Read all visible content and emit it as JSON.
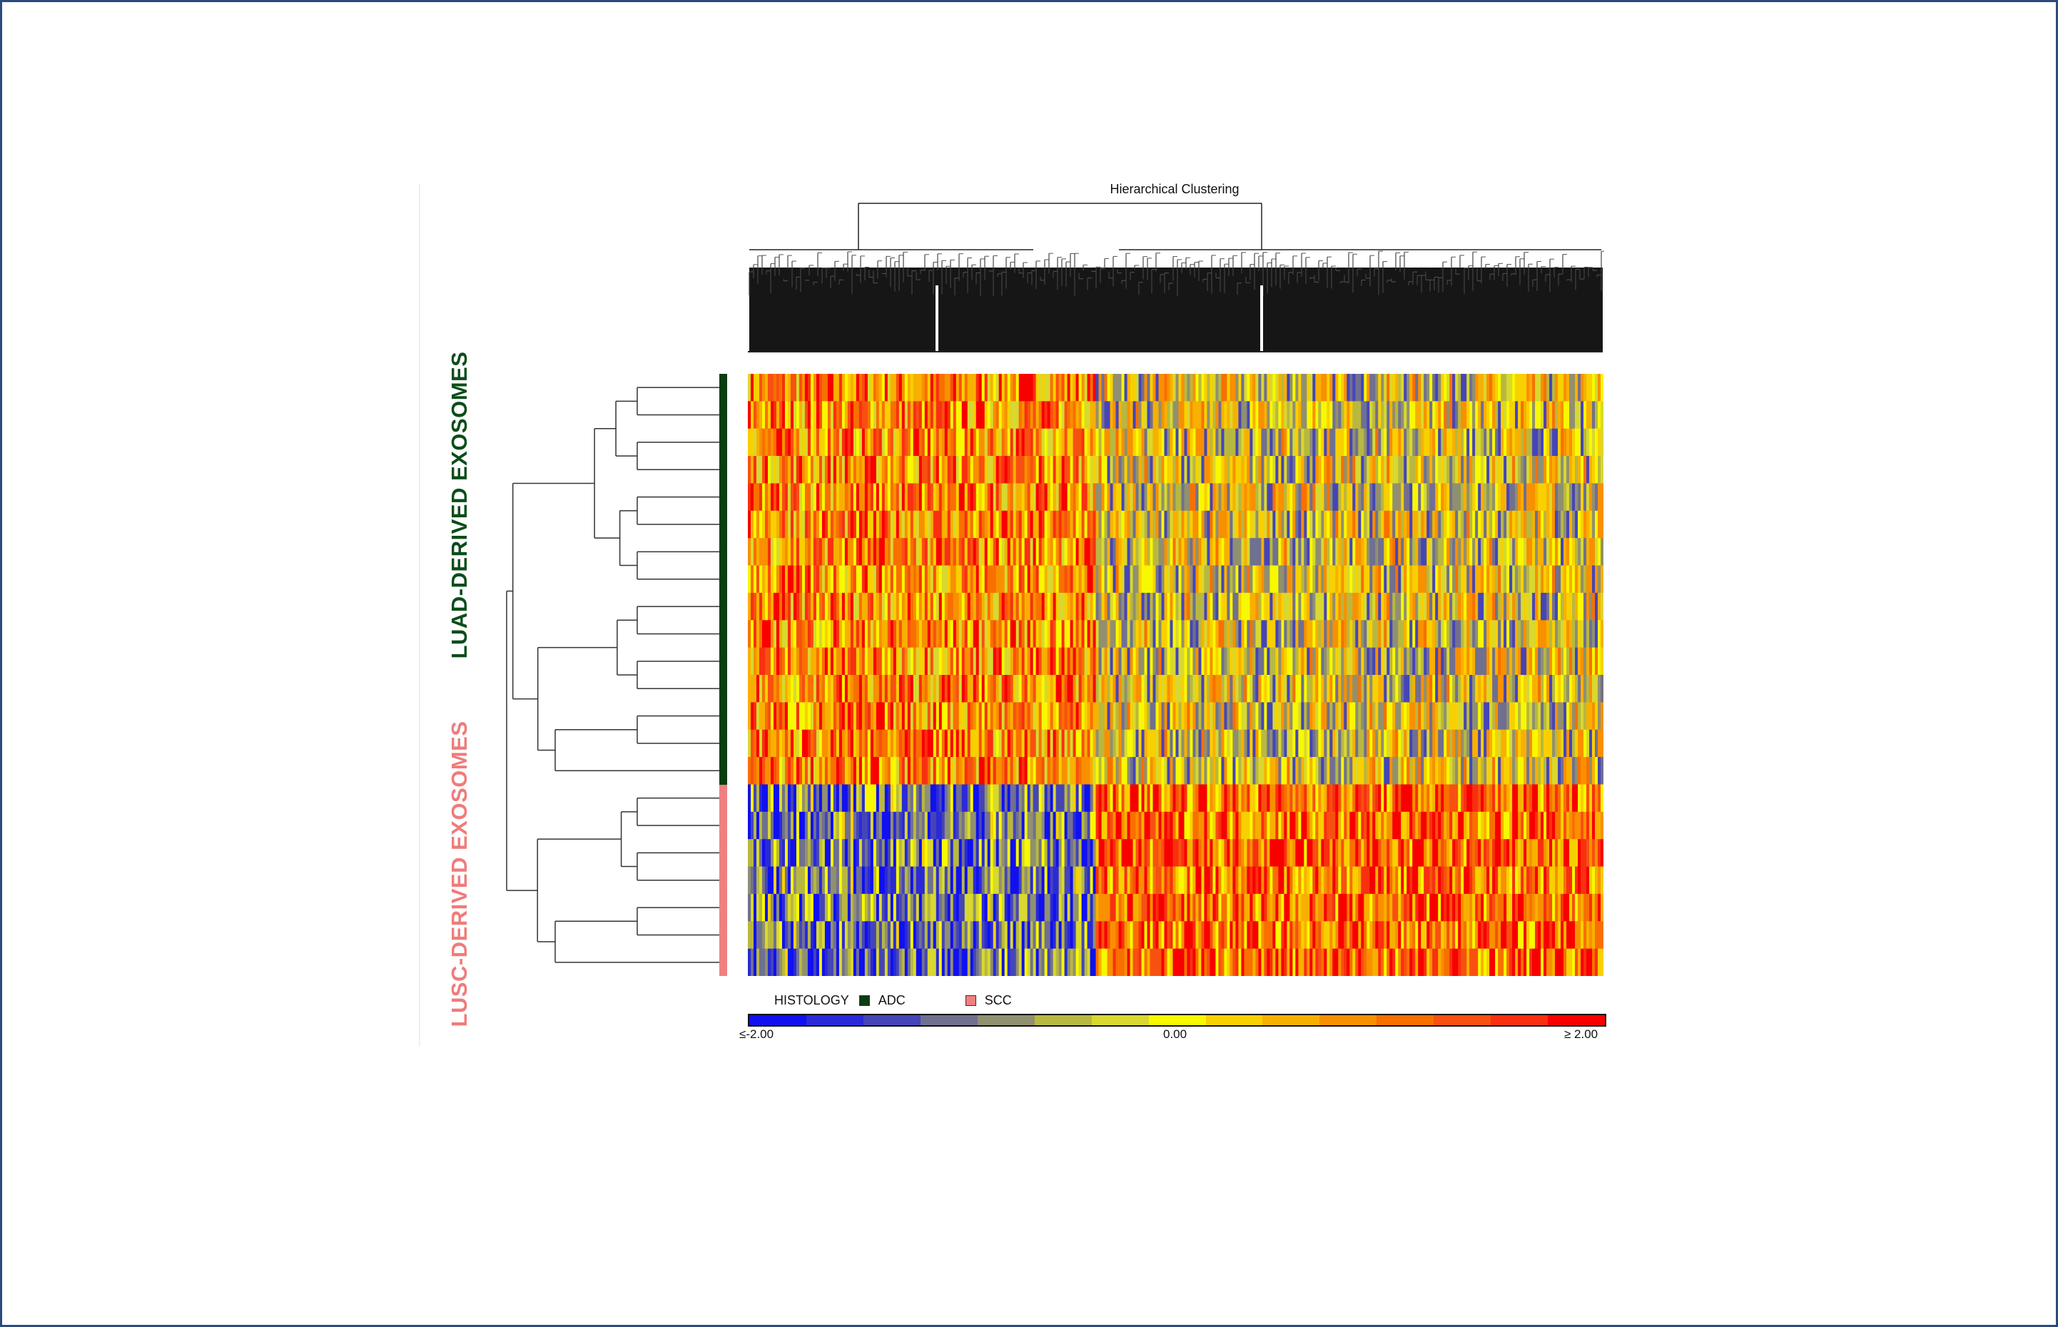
{
  "chart_data": {
    "type": "heatmap",
    "title": "Hierarchical Clustering",
    "row_groups": [
      {
        "label": "LUAD-DERIVED EXOSOMES",
        "histology": "ADC",
        "color": "#0b3d12"
      },
      {
        "label": "LUSC-DERIVED EXOSOMES",
        "histology": "SCC",
        "color": "#f08080"
      }
    ],
    "legend": {
      "title": "HISTOLOGY",
      "entries": [
        {
          "label": "ADC",
          "color": "#0b3d12"
        },
        {
          "label": "SCC",
          "color": "#f08080"
        }
      ]
    },
    "colorscale": {
      "min_label": "≤-2.00",
      "mid_label": "0.00",
      "max_label": "≥ 2.00",
      "range": [
        -2,
        2
      ],
      "colors": [
        "#1010f0",
        "#2a2ad8",
        "#4545b8",
        "#707090",
        "#909070",
        "#b8b840",
        "#d8d830",
        "#f8f800",
        "#f8d000",
        "#f8b000",
        "#f89000",
        "#f87000",
        "#f85010",
        "#f83010",
        "#f80000"
      ]
    },
    "dendrograms": {
      "rows": true,
      "columns": true
    }
  }
}
